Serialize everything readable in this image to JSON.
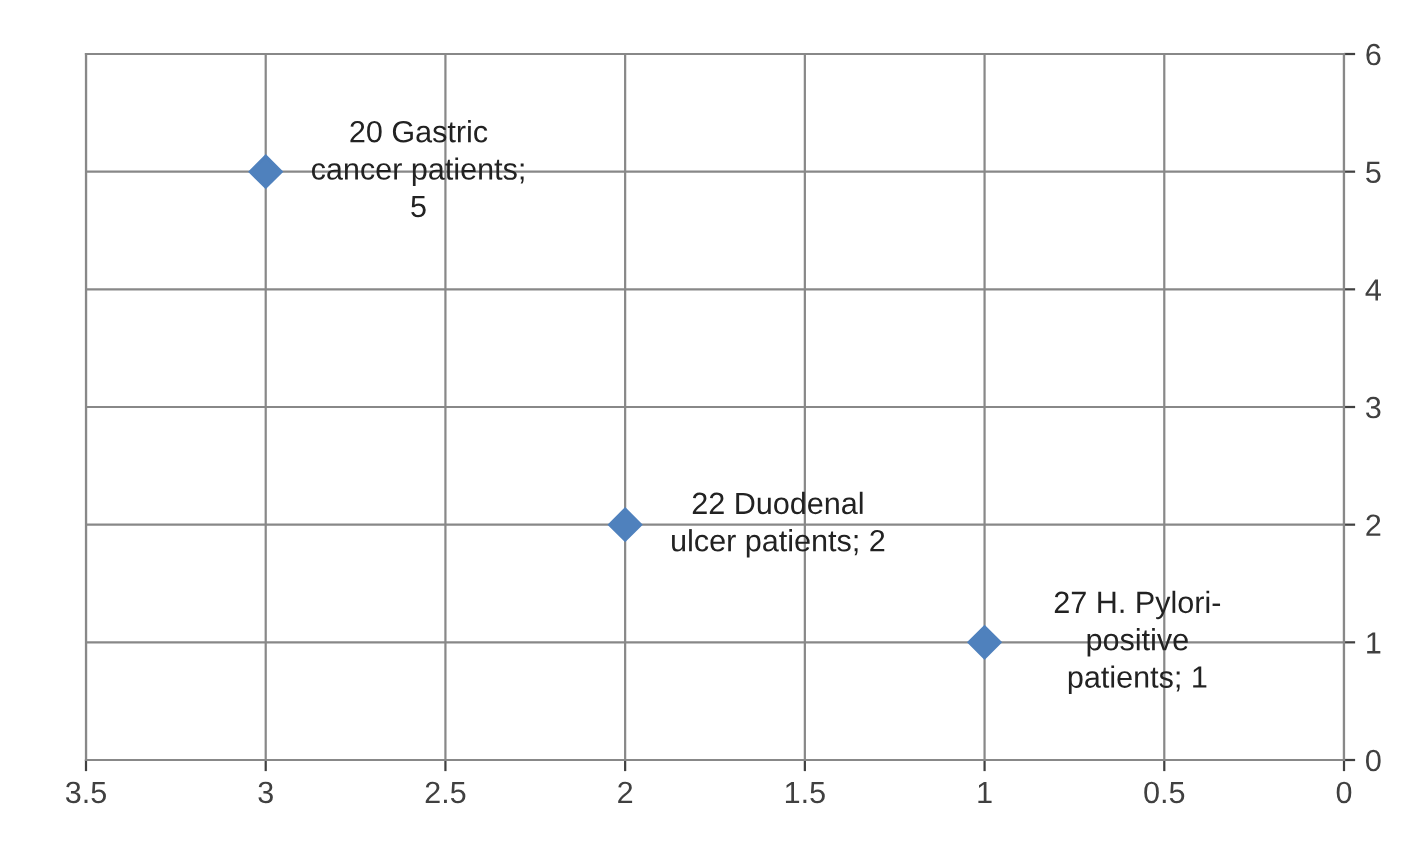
{
  "chart_data": {
    "type": "scatter",
    "x": [
      3,
      2,
      1
    ],
    "values": [
      5,
      2,
      1
    ],
    "color": "#4f81bd",
    "marker": "diamond",
    "xlim": [
      3.5,
      0
    ],
    "xticks": [
      3.5,
      3,
      2.5,
      2,
      1.5,
      1,
      0.5,
      0
    ],
    "ylim": [
      0,
      6
    ],
    "yticks": [
      0,
      1,
      2,
      3,
      4,
      5,
      6
    ],
    "grid": true,
    "annotations": [
      {
        "text": "20 Gastric\ncancer patients;\n5",
        "x": 3,
        "y": 5
      },
      {
        "text": "22 Duodenal\nulcer patients; 2",
        "x": 2,
        "y": 2
      },
      {
        "text": "27 H. Pylori-\npositive\npatients; 1",
        "x": 1,
        "y": 1
      }
    ]
  }
}
